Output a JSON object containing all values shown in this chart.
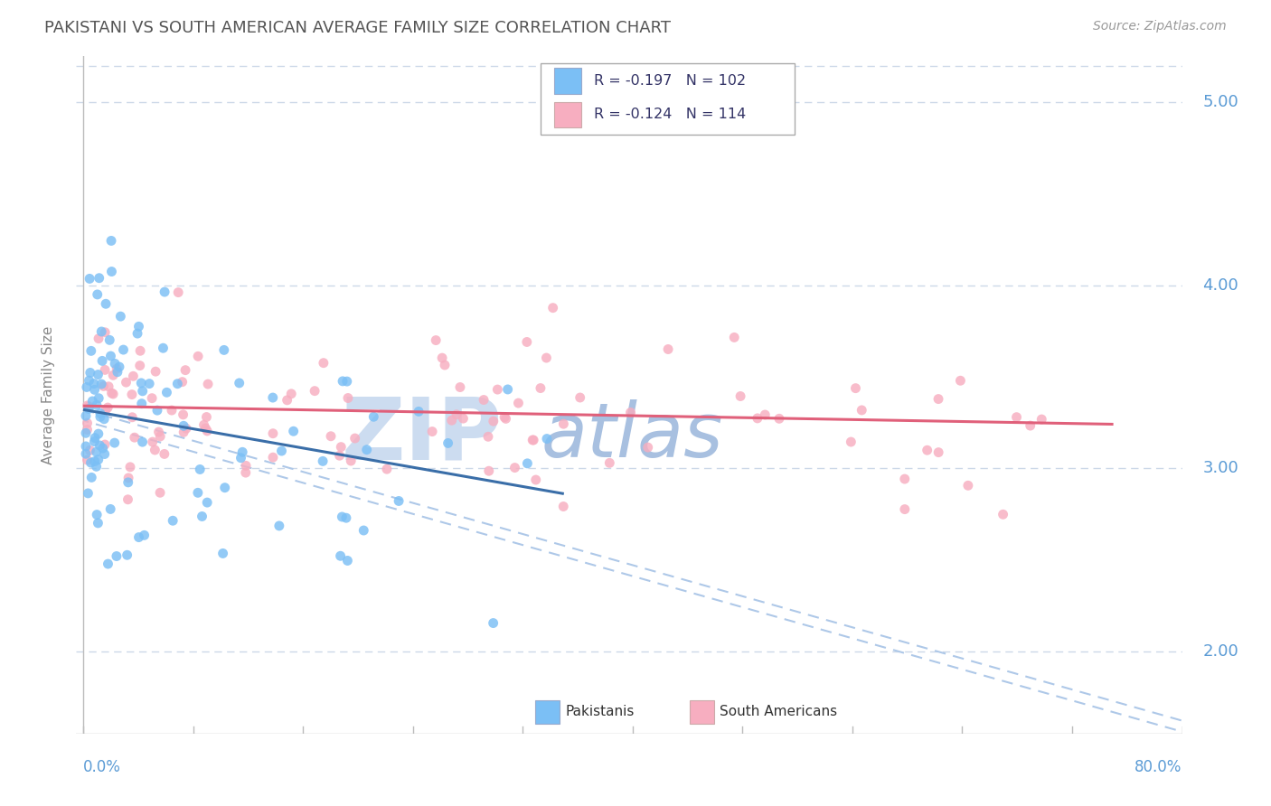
{
  "title": "PAKISTANI VS SOUTH AMERICAN AVERAGE FAMILY SIZE CORRELATION CHART",
  "source_text": "Source: ZipAtlas.com",
  "ylabel": "Average Family Size",
  "ymin": 1.55,
  "ymax": 5.25,
  "xmin": -0.5,
  "xmax": 80.0,
  "yticks": [
    2.0,
    3.0,
    4.0,
    5.0
  ],
  "legend1_r": "-0.197",
  "legend1_n": "102",
  "legend2_r": "-0.124",
  "legend2_n": "114",
  "blue_color": "#7bbff5",
  "pink_color": "#f7aec0",
  "blue_line_color": "#3a6ea8",
  "pink_line_color": "#e0607a",
  "dashed_line_color": "#aec8e8",
  "watermark_color_zip": "#ccdcf0",
  "watermark_color_atlas": "#a8c0e0",
  "title_color": "#555555",
  "axis_label_color": "#5b9bd5",
  "grid_color": "#ccd8e8",
  "background_color": "#ffffff",
  "pak_trend_x0": 0.0,
  "pak_trend_y0": 3.32,
  "pak_trend_x1": 35.0,
  "pak_trend_y1": 2.86,
  "sa_trend_x0": 0.0,
  "sa_trend_y0": 3.34,
  "sa_trend_x1": 75.0,
  "sa_trend_y1": 3.24,
  "dash_x0": 0.0,
  "dash_y0": 3.32,
  "dash_x1": 80.0,
  "dash_y1": 1.62
}
